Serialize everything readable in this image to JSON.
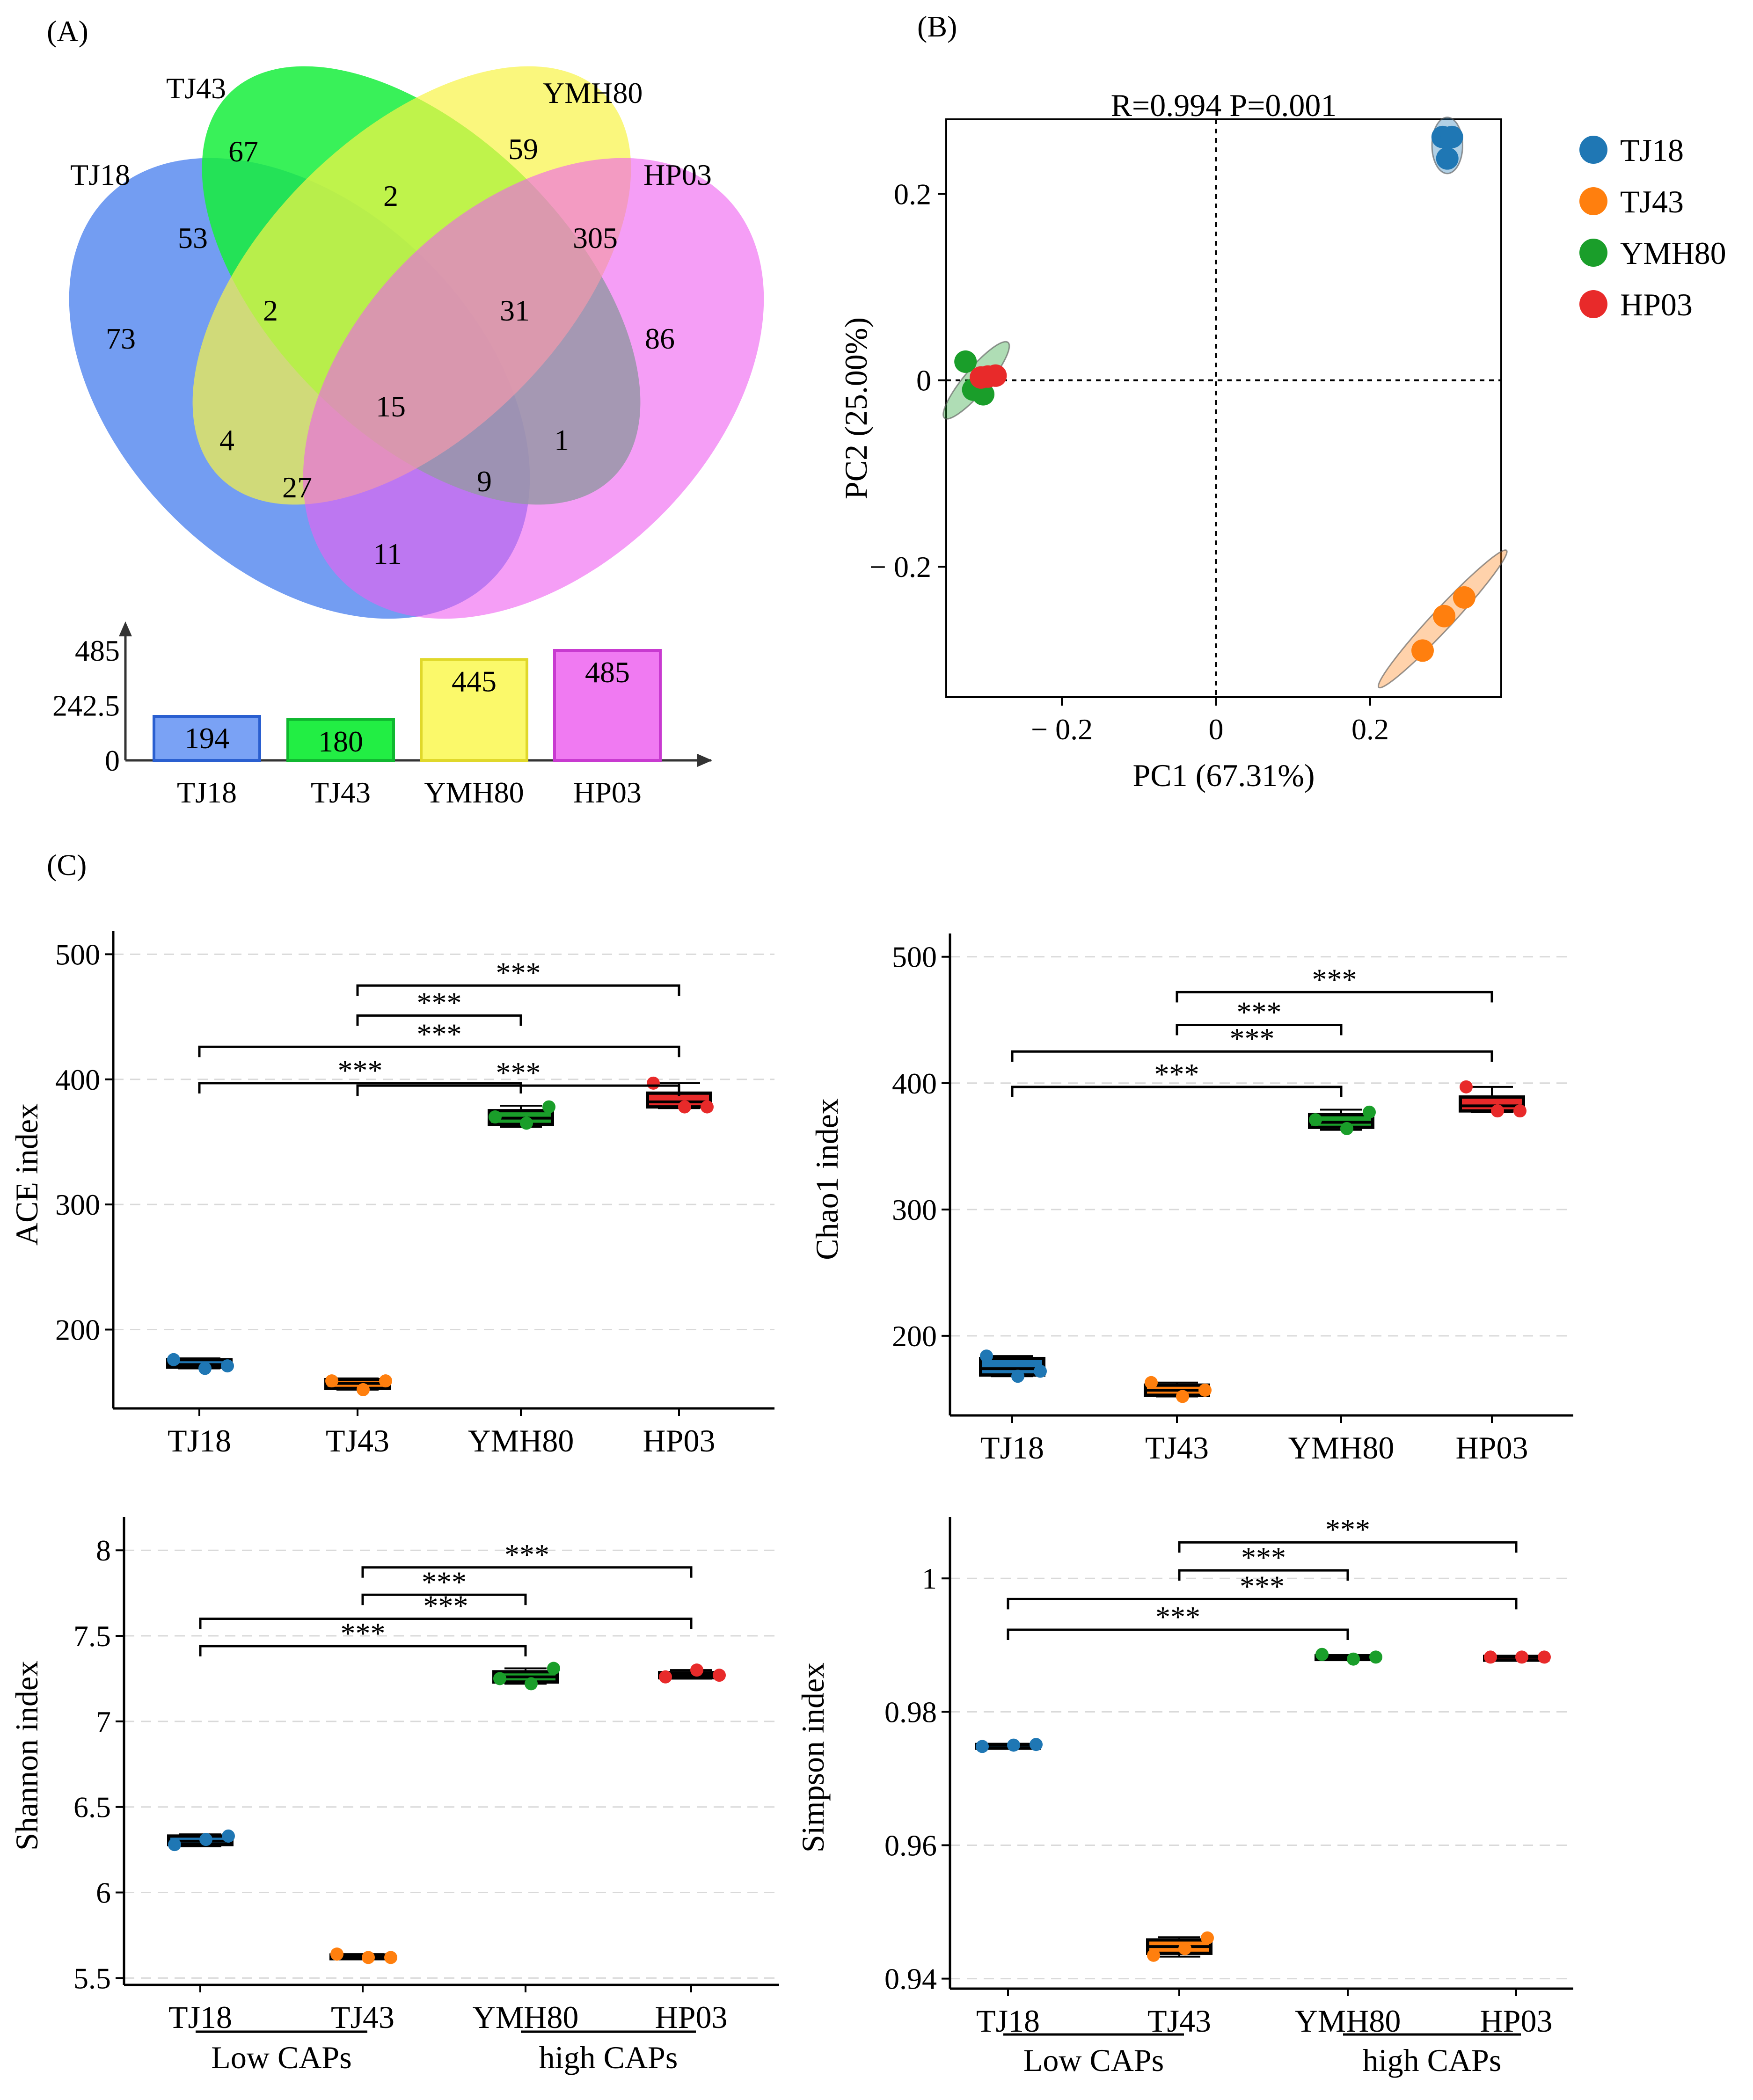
{
  "panel_labels": {
    "a": "(A)",
    "b": "(B)",
    "c": "(C)"
  },
  "colors": {
    "TJ18": "#1f77b4",
    "TJ43": "#ff7f0e",
    "YMH80": "#1a9e2a",
    "HP03": "#e82a2a",
    "venn_TJ18": "#5b8cf0",
    "venn_TJ43": "#16ee3c",
    "venn_YMH80": "#f8f446",
    "venn_HP03": "#ee5ef0",
    "bar_TJ18": "#7aa2f5",
    "bar_TJ43": "#22ee44",
    "bar_YMH80": "#fbf96a",
    "bar_HP03": "#f07af2"
  },
  "venn": {
    "sets": [
      "TJ18",
      "TJ43",
      "YMH80",
      "HP03"
    ],
    "regions": [
      {
        "sets": "TJ18",
        "value": "73"
      },
      {
        "sets": "TJ43",
        "value": "67"
      },
      {
        "sets": "YMH80",
        "value": "59"
      },
      {
        "sets": "HP03",
        "value": "86"
      },
      {
        "sets": "TJ18&TJ43",
        "value": "53"
      },
      {
        "sets": "TJ43&YMH80",
        "value": "2"
      },
      {
        "sets": "YMH80&HP03",
        "value": "305"
      },
      {
        "sets": "TJ18&TJ43&YMH80",
        "value": "2"
      },
      {
        "sets": "TJ43&YMH80&HP03",
        "value": "31"
      },
      {
        "sets": "TJ18&TJ43&YMH80&HP03",
        "value": "15"
      },
      {
        "sets": "TJ18&YMH80",
        "value": "4"
      },
      {
        "sets": "TJ43&HP03",
        "value": "1"
      },
      {
        "sets": "TJ18&YMH80&HP03",
        "value": "27"
      },
      {
        "sets": "TJ18&TJ43&HP03",
        "value": "9"
      },
      {
        "sets": "TJ18&HP03",
        "value": "11"
      }
    ]
  },
  "chart_data": [
    {
      "id": "set-size-bar",
      "type": "bar",
      "categories": [
        "TJ18",
        "TJ43",
        "YMH80",
        "HP03"
      ],
      "values": [
        194,
        180,
        445,
        485
      ],
      "value_labels": [
        "194",
        "180",
        "445",
        "485"
      ],
      "yticks": [
        "0",
        "242.5",
        "485"
      ],
      "ylim": [
        0,
        485
      ]
    },
    {
      "id": "pcoa",
      "type": "scatter",
      "title": "R=0.994 P=0.001",
      "xlabel": "PC1 (67.31%)",
      "ylabel": "PC2 (25.00%)",
      "xlim": [
        -0.35,
        0.37
      ],
      "ylim": [
        -0.34,
        0.28
      ],
      "xticks": [
        {
          "v": -0.2,
          "label": "− 0.2"
        },
        {
          "v": 0,
          "label": "0"
        },
        {
          "v": 0.2,
          "label": "0.2"
        }
      ],
      "yticks": [
        {
          "v": 0.2,
          "label": "0.2"
        },
        {
          "v": 0,
          "label": "0"
        },
        {
          "v": -0.2,
          "label": "− 0.2"
        }
      ],
      "legend": [
        "TJ18",
        "TJ43",
        "YMH80",
        "HP03"
      ],
      "legend_position": "right",
      "series": [
        {
          "name": "TJ18",
          "points": [
            [
              0.294,
              0.261
            ],
            [
              0.306,
              0.261
            ],
            [
              0.3,
              0.238
            ]
          ],
          "ellipse": {
            "cx": 0.3,
            "cy": 0.252,
            "rx": 0.018,
            "ry": 0.033,
            "angle": 0
          }
        },
        {
          "name": "TJ43",
          "points": [
            [
              0.268,
              -0.29
            ],
            [
              0.296,
              -0.253
            ],
            [
              0.322,
              -0.233
            ]
          ],
          "ellipse": {
            "cx": 0.294,
            "cy": -0.256,
            "rx": 0.11,
            "ry": 0.012,
            "angle": 47
          }
        },
        {
          "name": "YMH80",
          "points": [
            [
              -0.325,
              0.02
            ],
            [
              -0.315,
              -0.01
            ],
            [
              -0.302,
              -0.015
            ]
          ],
          "ellipse": {
            "cx": -0.311,
            "cy": 0.0,
            "rx": 0.058,
            "ry": 0.014,
            "angle": 50
          }
        },
        {
          "name": "HP03",
          "points": [
            [
              -0.305,
              0.003
            ],
            [
              -0.296,
              0.004
            ],
            [
              -0.286,
              0.005
            ]
          ]
        }
      ]
    },
    {
      "id": "ace",
      "type": "box",
      "ylabel": "ACE index",
      "categories": [
        "TJ18",
        "TJ43",
        "YMH80",
        "HP03"
      ],
      "ylim": [
        137,
        511
      ],
      "yticks": [
        200,
        300,
        400,
        500
      ],
      "box_stats": [
        {
          "min": 169,
          "q1": 170,
          "med": 172,
          "q3": 176,
          "max": 177
        },
        {
          "min": 152,
          "q1": 153,
          "med": 157,
          "q3": 160,
          "max": 161
        },
        {
          "min": 362,
          "q1": 364,
          "med": 369,
          "q3": 375,
          "max": 379
        },
        {
          "min": 377,
          "q1": 378,
          "med": 382,
          "q3": 389,
          "max": 397
        }
      ],
      "points": [
        [
          176,
          169,
          171
        ],
        [
          159,
          152,
          159
        ],
        [
          370,
          365,
          378
        ],
        [
          397,
          378,
          378
        ]
      ],
      "significance": [
        {
          "from": 1,
          "to": 3,
          "y": 395,
          "label": "***"
        },
        {
          "from": 0,
          "to": 3,
          "y": 426,
          "label": "***"
        },
        {
          "from": 1,
          "to": 2,
          "y": 451,
          "label": "***"
        },
        {
          "from": 1,
          "to": 3,
          "y": 475,
          "label": "***"
        },
        {
          "from": 0,
          "to": 2,
          "y": 397,
          "label": "***"
        }
      ]
    },
    {
      "id": "chao1",
      "type": "box",
      "ylabel": "Chao1  index",
      "categories": [
        "TJ18",
        "TJ43",
        "YMH80",
        "HP03"
      ],
      "ylim": [
        137,
        511
      ],
      "yticks": [
        200,
        300,
        400,
        500
      ],
      "box_stats": [
        {
          "min": 168,
          "q1": 169,
          "med": 174,
          "q3": 182,
          "max": 184
        },
        {
          "min": 152,
          "q1": 153,
          "med": 157,
          "q3": 161,
          "max": 163
        },
        {
          "min": 363,
          "q1": 365,
          "med": 369,
          "q3": 375,
          "max": 379
        },
        {
          "min": 377,
          "q1": 378,
          "med": 382,
          "q3": 389,
          "max": 397
        }
      ],
      "points": [
        [
          184,
          168,
          172
        ],
        [
          163,
          152,
          157
        ],
        [
          371,
          364,
          377
        ],
        [
          397,
          378,
          378
        ]
      ],
      "significance": [
        {
          "from": 0,
          "to": 2,
          "y": 397,
          "label": "***"
        },
        {
          "from": 0,
          "to": 3,
          "y": 425,
          "label": "***"
        },
        {
          "from": 1,
          "to": 2,
          "y": 446,
          "label": "***"
        },
        {
          "from": 1,
          "to": 3,
          "y": 472,
          "label": "***"
        }
      ]
    },
    {
      "id": "shannon",
      "type": "box",
      "ylabel": "Shannon index",
      "categories": [
        "TJ18",
        "TJ43",
        "YMH80",
        "HP03"
      ],
      "group_labels": [
        {
          "from": 0,
          "to": 1,
          "label": "Low CAPs"
        },
        {
          "from": 2,
          "to": 3,
          "label": "high CAPs"
        }
      ],
      "ylim": [
        5.46,
        8.14
      ],
      "yticks": [
        5.5,
        6,
        6.5,
        7,
        7.5,
        8
      ],
      "ytick_labels": [
        "5.5",
        "6",
        "6.5",
        "7",
        "7.5",
        "8"
      ],
      "box_stats": [
        {
          "min": 6.27,
          "q1": 6.28,
          "med": 6.3,
          "q3": 6.33,
          "max": 6.34
        },
        {
          "min": 5.62,
          "q1": 5.625,
          "med": 5.63,
          "q3": 5.635,
          "max": 5.64
        },
        {
          "min": 7.22,
          "q1": 7.23,
          "med": 7.26,
          "q3": 7.29,
          "max": 7.31
        },
        {
          "min": 7.25,
          "q1": 7.255,
          "med": 7.27,
          "q3": 7.285,
          "max": 7.3
        }
      ],
      "points": [
        [
          6.28,
          6.31,
          6.33
        ],
        [
          5.64,
          5.62,
          5.62
        ],
        [
          7.25,
          7.22,
          7.31
        ],
        [
          7.26,
          7.3,
          7.27
        ]
      ],
      "significance": [
        {
          "from": 0,
          "to": 2,
          "y": 7.44,
          "label": "***"
        },
        {
          "from": 0,
          "to": 3,
          "y": 7.6,
          "label": "***"
        },
        {
          "from": 1,
          "to": 2,
          "y": 7.74,
          "label": "***"
        },
        {
          "from": 1,
          "to": 3,
          "y": 7.9,
          "label": "***"
        }
      ]
    },
    {
      "id": "simpson",
      "type": "box",
      "ylabel": "Simpson index",
      "categories": [
        "TJ18",
        "TJ43",
        "YMH80",
        "HP03"
      ],
      "group_labels": [
        {
          "from": 0,
          "to": 1,
          "label": "Low CAPs"
        },
        {
          "from": 2,
          "to": 3,
          "label": "high CAPs"
        }
      ],
      "ylim": [
        0.9385,
        1.0078
      ],
      "yticks": [
        0.94,
        0.96,
        0.98,
        1
      ],
      "ytick_labels": [
        "0.94",
        "0.96",
        "0.98",
        "1"
      ],
      "box_stats": [
        {
          "min": 0.9748,
          "q1": 0.9749,
          "med": 0.975,
          "q3": 0.9751,
          "max": 0.9752
        },
        {
          "min": 0.9433,
          "q1": 0.9438,
          "med": 0.9448,
          "q3": 0.9458,
          "max": 0.9462
        },
        {
          "min": 0.9879,
          "q1": 0.988,
          "med": 0.9882,
          "q3": 0.9884,
          "max": 0.9885
        },
        {
          "min": 0.9881,
          "q1": 0.9881,
          "med": 0.9882,
          "q3": 0.9883,
          "max": 0.9883
        }
      ],
      "points": [
        [
          0.9748,
          0.975,
          0.9751
        ],
        [
          0.9435,
          0.9445,
          0.9461
        ],
        [
          0.9886,
          0.9879,
          0.9882
        ],
        [
          0.9882,
          0.9882,
          0.9882
        ]
      ],
      "significance": [
        {
          "from": 0,
          "to": 2,
          "y": 0.9923,
          "label": "***"
        },
        {
          "from": 0,
          "to": 3,
          "y": 0.9969,
          "label": "***"
        },
        {
          "from": 1,
          "to": 2,
          "y": 1.0012,
          "label": "***"
        },
        {
          "from": 1,
          "to": 3,
          "y": 1.0054,
          "label": "***"
        }
      ]
    }
  ]
}
